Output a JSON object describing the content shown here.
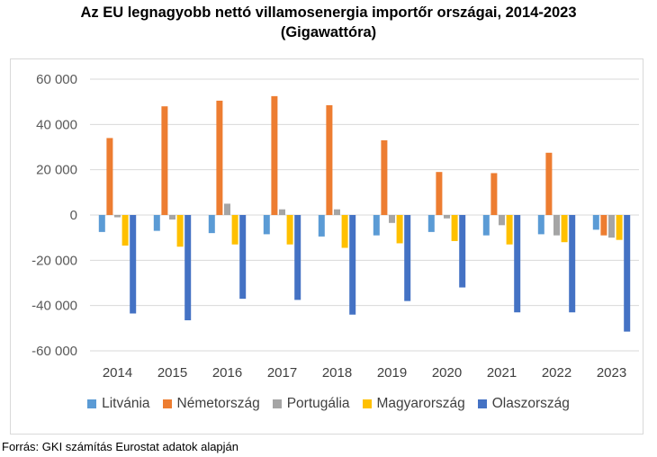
{
  "title_line1": "Az EU legnagyobb nettó villamosenergia importőr országai, 2014-2023",
  "title_line2": "(Gigawattóra)",
  "source": "Forrás: GKI számítás Eurostat adatok alapján",
  "chart_data": {
    "type": "bar",
    "title": "Az EU legnagyobb nettó villamosenergia importőr országai, 2014-2023 (Gigawattóra)",
    "categories": [
      "2014",
      "2015",
      "2016",
      "2017",
      "2018",
      "2019",
      "2020",
      "2021",
      "2022",
      "2023"
    ],
    "ylim": [
      -60000,
      60000
    ],
    "yticks": [
      60000,
      40000,
      20000,
      0,
      -20000,
      -40000,
      -60000
    ],
    "ytick_labels": [
      "60 000",
      "40 000",
      "20 000",
      "0",
      "-20 000",
      "-40 000",
      "-60 000"
    ],
    "grid": true,
    "legend_position": "bottom",
    "series": [
      {
        "name": "Litvánia",
        "color": "#5b9bd5",
        "values": [
          -7500,
          -7000,
          -8000,
          -8500,
          -9500,
          -9000,
          -7500,
          -9000,
          -8500,
          -6500
        ]
      },
      {
        "name": "Németország",
        "color": "#ed7d31",
        "values": [
          34000,
          48000,
          50500,
          52500,
          48500,
          33000,
          19000,
          18500,
          27500,
          -9000
        ]
      },
      {
        "name": "Portugália",
        "color": "#a5a5a5",
        "values": [
          -1000,
          -2000,
          5000,
          2500,
          2500,
          -3500,
          -1500,
          -4500,
          -9000,
          -10000
        ]
      },
      {
        "name": "Magyarország",
        "color": "#ffc000",
        "values": [
          -13500,
          -14000,
          -13000,
          -13000,
          -14500,
          -12500,
          -11500,
          -13000,
          -12000,
          -11000
        ]
      },
      {
        "name": "Olaszország",
        "color": "#4472c4",
        "values": [
          -43500,
          -46500,
          -37000,
          -37500,
          -44000,
          -38000,
          -32000,
          -43000,
          -43000,
          -51500
        ]
      }
    ]
  }
}
